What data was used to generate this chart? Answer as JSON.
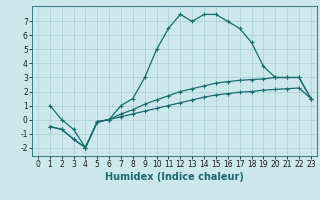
{
  "xlabel": "Humidex (Indice chaleur)",
  "bg_color": "#cce8ec",
  "grid_color": "#aacdd4",
  "line_color": "#1a6b6e",
  "xlim": [
    -0.5,
    23.5
  ],
  "ylim": [
    -2.6,
    8.1
  ],
  "xticks": [
    0,
    1,
    2,
    3,
    4,
    5,
    6,
    7,
    8,
    9,
    10,
    11,
    12,
    13,
    14,
    15,
    16,
    17,
    18,
    19,
    20,
    21,
    22,
    23
  ],
  "yticks": [
    -2,
    -1,
    0,
    1,
    2,
    3,
    4,
    5,
    6,
    7
  ],
  "curve1_x": [
    1,
    2,
    3,
    4,
    5,
    6,
    7,
    8,
    9,
    10,
    11,
    12,
    13,
    14,
    15,
    16,
    17,
    18,
    19,
    20,
    21,
    22,
    23
  ],
  "curve1_y": [
    1.0,
    0.0,
    -0.7,
    -2.0,
    -0.2,
    0.0,
    1.0,
    1.5,
    3.0,
    5.0,
    6.5,
    7.5,
    7.0,
    7.5,
    7.5,
    7.0,
    6.5,
    5.5,
    3.8,
    3.0,
    3.0,
    3.0,
    1.5
  ],
  "curve2_x": [
    1,
    2,
    3,
    4,
    5,
    6,
    7,
    8,
    9,
    10,
    11,
    12,
    13,
    14,
    15,
    16,
    17,
    18,
    19,
    20,
    21,
    22,
    23
  ],
  "curve2_y": [
    -0.5,
    -0.7,
    -1.4,
    -2.0,
    -0.15,
    0.0,
    0.4,
    0.7,
    1.1,
    1.4,
    1.7,
    2.0,
    2.2,
    2.4,
    2.6,
    2.7,
    2.8,
    2.85,
    2.9,
    3.0,
    3.0,
    3.0,
    1.5
  ],
  "curve3_x": [
    1,
    2,
    3,
    4,
    5,
    6,
    7,
    8,
    9,
    10,
    11,
    12,
    13,
    14,
    15,
    16,
    17,
    18,
    19,
    20,
    21,
    22,
    23
  ],
  "curve3_y": [
    -0.5,
    -0.7,
    -1.4,
    -2.0,
    -0.15,
    0.0,
    0.2,
    0.4,
    0.6,
    0.8,
    1.0,
    1.2,
    1.4,
    1.6,
    1.75,
    1.85,
    1.95,
    2.0,
    2.1,
    2.15,
    2.2,
    2.25,
    1.5
  ],
  "xlabel_fontsize": 7,
  "tick_fontsize": 5.5,
  "linewidth": 0.9,
  "markersize": 2.5
}
